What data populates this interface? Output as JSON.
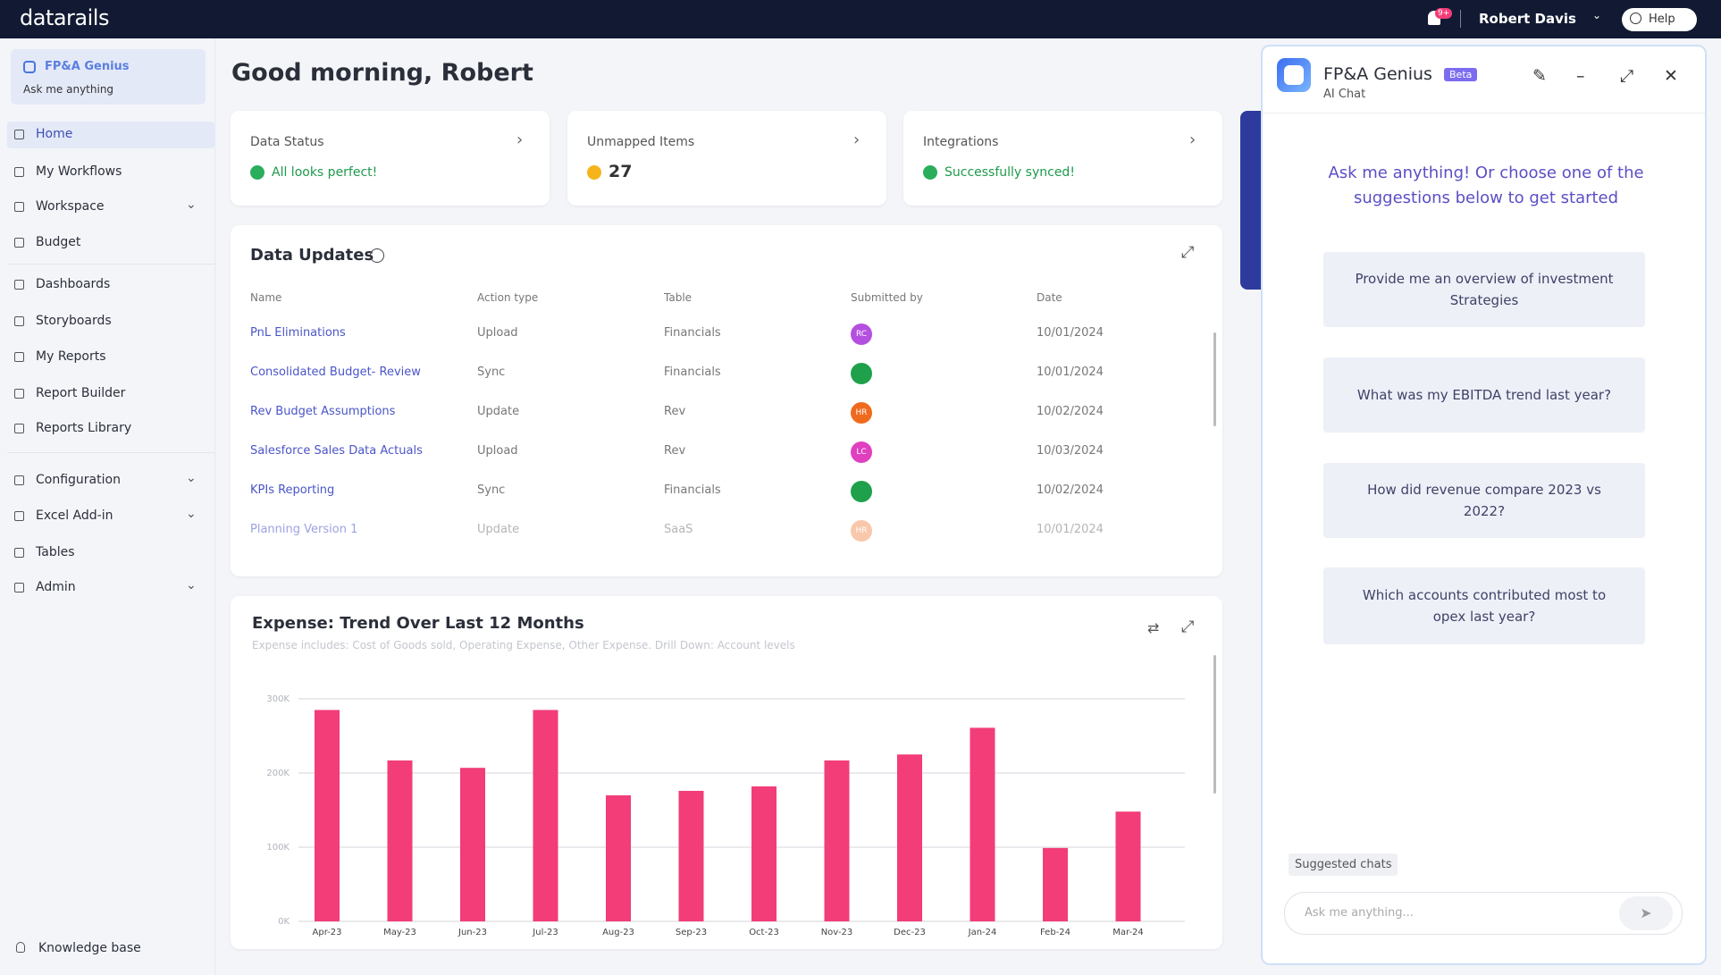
{
  "topbar": {
    "logo": "datarails",
    "notifications": "9+",
    "user": "Robert Davis",
    "help": "Help"
  },
  "sidebar": {
    "genius": {
      "title": "FP&A Genius",
      "subtitle": "Ask me anything"
    },
    "nav": [
      {
        "label": "Home",
        "active": true
      },
      {
        "label": "My Workflows"
      },
      {
        "label": "Workspace",
        "expandable": true
      },
      {
        "label": "Budget"
      },
      {
        "label": "Dashboards"
      },
      {
        "label": "Storyboards"
      },
      {
        "label": "My Reports"
      },
      {
        "label": "Report Builder"
      },
      {
        "label": "Reports Library"
      },
      {
        "label": "Configuration",
        "expandable": true
      },
      {
        "label": "Excel Add-in",
        "expandable": true
      },
      {
        "label": "Tables"
      },
      {
        "label": "Admin",
        "expandable": true
      }
    ],
    "footer": "Knowledge base"
  },
  "greeting": "Good morning, Robert",
  "status_cards": [
    {
      "title": "Data Status",
      "value": "All looks perfect!",
      "status": "ok"
    },
    {
      "title": "Unmapped Items",
      "value": "27",
      "status": "warn"
    },
    {
      "title": "Integrations",
      "value": "Successfully synced!",
      "status": "ok"
    }
  ],
  "data_updates": {
    "title": "Data Updates",
    "columns": [
      "Name",
      "Action type",
      "Table",
      "Submitted by",
      "Date"
    ],
    "rows": [
      {
        "name": "PnL Eliminations",
        "action": "Upload",
        "table": "Financials",
        "initials": "RC",
        "avatar": "#b44fe0",
        "date": "10/01/2024"
      },
      {
        "name": "Consolidated Budget- Review",
        "action": "Sync",
        "table": "Financials",
        "avatar": "#1ea14a",
        "date": "10/01/2024"
      },
      {
        "name": "Rev Budget Assumptions",
        "action": "Update",
        "table": "Rev",
        "initials": "HR",
        "avatar": "#f06a1d",
        "date": "10/02/2024"
      },
      {
        "name": "Salesforce Sales Data Actuals",
        "action": "Upload",
        "table": "Rev",
        "initials": "LC",
        "avatar": "#e040c0",
        "date": "10/03/2024"
      },
      {
        "name": "KPIs Reporting",
        "action": "Sync",
        "table": "Financials",
        "avatar": "#1ea14a",
        "date": "10/02/2024"
      },
      {
        "name": "Planning Version 1",
        "action": "Update",
        "table": "SaaS",
        "initials": "HR",
        "avatar": "#f59a66",
        "date": "10/01/2024"
      }
    ]
  },
  "chart_data": {
    "type": "bar",
    "title": "Expense: Trend Over Last 12 Months",
    "subtitle": "Expense includes: Cost of Goods sold, Operating Expense, Other Expense. Drill Down: Account levels",
    "categories": [
      "Apr-23",
      "May-23",
      "Jun-23",
      "Jul-23",
      "Aug-23",
      "Sep-23",
      "Oct-23",
      "Nov-23",
      "Dec-23",
      "Jan-24",
      "Feb-24",
      "Mar-24"
    ],
    "values": [
      285000,
      217000,
      207000,
      285000,
      170000,
      176000,
      182000,
      217000,
      225000,
      261000,
      99000,
      148000
    ],
    "color": "#f23d78",
    "ylim": [
      0,
      300000
    ],
    "yticks": [
      {
        "value": 0,
        "label": "0K"
      },
      {
        "value": 100000,
        "label": "100K"
      },
      {
        "value": 200000,
        "label": "200K"
      },
      {
        "value": 300000,
        "label": "300K"
      }
    ],
    "grid": true
  },
  "chat": {
    "title": "FP&A Genius",
    "badge": "Beta",
    "subtitle": "AI Chat",
    "prompt": "Ask me anything! Or choose one of the suggestions below to get started",
    "suggestions": [
      "Provide me an overview of investment Strategies",
      "What was my EBITDA trend last year?",
      "How did revenue compare 2023 vs 2022?",
      "Which accounts contributed most to opex last year?"
    ],
    "suggested_label": "Suggested chats",
    "placeholder": "Ask me anything..."
  }
}
